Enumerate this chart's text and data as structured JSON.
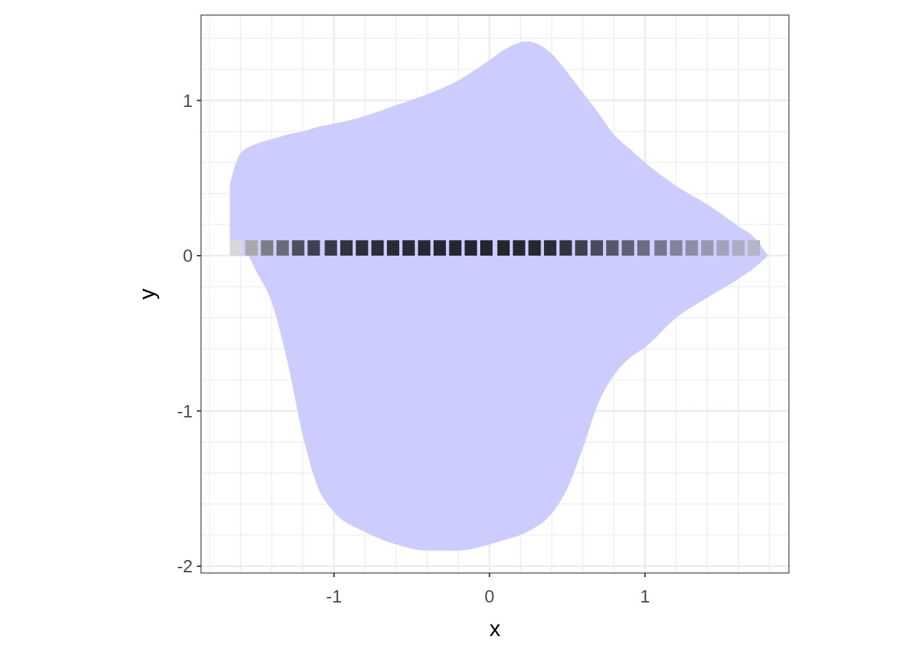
{
  "chart_data": {
    "type": "scatter",
    "xlabel": "x",
    "ylabel": "y",
    "xlim": [
      -1.855,
      1.925
    ],
    "ylim": [
      -2.044,
      1.55
    ],
    "xticks": [
      {
        "value": -1.8,
        "label": null
      },
      {
        "value": -1.6,
        "label": null
      },
      {
        "value": -1.4,
        "label": null
      },
      {
        "value": -1.2,
        "label": null
      },
      -1,
      {
        "value": -0.8,
        "label": null
      },
      {
        "value": -0.6,
        "label": null
      },
      {
        "value": -0.4,
        "label": null
      },
      {
        "value": -0.2,
        "label": null
      },
      0,
      {
        "value": 0.2,
        "label": null
      },
      {
        "value": 0.4,
        "label": null
      },
      {
        "value": 0.6,
        "label": null
      },
      {
        "value": 0.8,
        "label": null
      },
      1,
      {
        "value": 1.2,
        "label": null
      },
      {
        "value": 1.4,
        "label": null
      },
      {
        "value": 1.6,
        "label": null
      },
      {
        "value": 1.8,
        "label": null
      }
    ],
    "yticks": [
      -2,
      {
        "value": -1.8,
        "label": null
      },
      {
        "value": -1.6,
        "label": null
      },
      {
        "value": -1.4,
        "label": null
      },
      {
        "value": -1.2,
        "label": null
      },
      -1,
      {
        "value": -0.8,
        "label": null
      },
      {
        "value": -0.6,
        "label": null
      },
      {
        "value": -0.4,
        "label": null
      },
      {
        "value": -0.2,
        "label": null
      },
      0,
      {
        "value": 0.2,
        "label": null
      },
      {
        "value": 0.4,
        "label": null
      },
      {
        "value": 0.6,
        "label": null
      },
      {
        "value": 0.8,
        "label": null
      },
      1,
      {
        "value": 1.2,
        "label": null
      },
      {
        "value": 1.4,
        "label": null
      }
    ],
    "grid": true,
    "series": [
      {
        "type": "area",
        "color": "#ccccff",
        "x": [
          -1.67,
          -1.6,
          -1.5,
          -1.4,
          -1.3,
          -1.2,
          -1.1,
          -1.0,
          -0.8,
          -0.6,
          -0.4,
          -0.2,
          0,
          0.1,
          0.24,
          0.4,
          0.5,
          0.6,
          0.7,
          0.8,
          0.9,
          1.0,
          1.2,
          1.4,
          1.6,
          1.7,
          1.79
        ],
        "values": [
          0.46,
          0.66,
          0.72,
          0.75,
          0.78,
          0.8,
          0.83,
          0.85,
          0.9,
          0.97,
          1.04,
          1.13,
          1.26,
          1.33,
          1.38,
          1.3,
          1.18,
          1.05,
          0.92,
          0.78,
          0.69,
          0.6,
          0.45,
          0.33,
          0.19,
          0.12,
          0.0
        ]
      },
      {
        "type": "area",
        "color": "#ccccff",
        "x": [
          -1.55,
          -1.5,
          -1.4,
          -1.3,
          -1.2,
          -1.1,
          -1.0,
          -0.8,
          -0.6,
          -0.4,
          -0.2,
          0,
          0.1,
          0.24,
          0.4,
          0.5,
          0.6,
          0.7,
          0.8,
          0.9,
          1.0,
          1.2,
          1.4,
          1.6,
          1.7,
          1.79
        ],
        "values": [
          0.0,
          -0.1,
          -0.3,
          -0.68,
          -1.16,
          -1.5,
          -1.65,
          -1.78,
          -1.86,
          -1.9,
          -1.9,
          -1.86,
          -1.83,
          -1.78,
          -1.66,
          -1.5,
          -1.24,
          -0.95,
          -0.77,
          -0.66,
          -0.59,
          -0.4,
          -0.27,
          -0.15,
          -0.08,
          0.0
        ]
      },
      {
        "marker": "square",
        "x": [
          -1.63,
          -1.53,
          -1.43,
          -1.33,
          -1.23,
          -1.13,
          -1.02,
          -0.92,
          -0.82,
          -0.72,
          -0.62,
          -0.52,
          -0.42,
          -0.32,
          -0.22,
          -0.12,
          -0.02,
          0.09,
          0.19,
          0.29,
          0.39,
          0.49,
          0.59,
          0.69,
          0.79,
          0.89,
          0.99,
          1.1,
          1.2,
          1.3,
          1.4,
          1.5,
          1.6,
          1.7
        ],
        "values": [
          0.05,
          0.05,
          0.05,
          0.05,
          0.05,
          0.05,
          0.05,
          0.05,
          0.05,
          0.05,
          0.05,
          0.05,
          0.05,
          0.05,
          0.05,
          0.05,
          0.05,
          0.05,
          0.05,
          0.05,
          0.05,
          0.05,
          0.05,
          0.05,
          0.05,
          0.05,
          0.05,
          0.05,
          0.05,
          0.05,
          0.05,
          0.05,
          0.05,
          0.05
        ],
        "colors": [
          "#d8d8d8",
          "#a9a9a9",
          "#7d7d85",
          "#6a6a78",
          "#4e4e5c",
          "#404050",
          "#383846",
          "#32323e",
          "#2e2e3a",
          "#2c2c38",
          "#2a2a36",
          "#292934",
          "#282832",
          "#272731",
          "#262630",
          "#25252e",
          "#25252e",
          "#25252e",
          "#26262f",
          "#272730",
          "#2c2c36",
          "#333340",
          "#3e3e4c",
          "#4a4a5a",
          "#565668",
          "#606074",
          "#6c6c80",
          "#77778c",
          "#828298",
          "#8c8ca2",
          "#9898ae",
          "#a2a2b8",
          "#adadc2",
          "#b5b5ca"
        ]
      }
    ]
  }
}
